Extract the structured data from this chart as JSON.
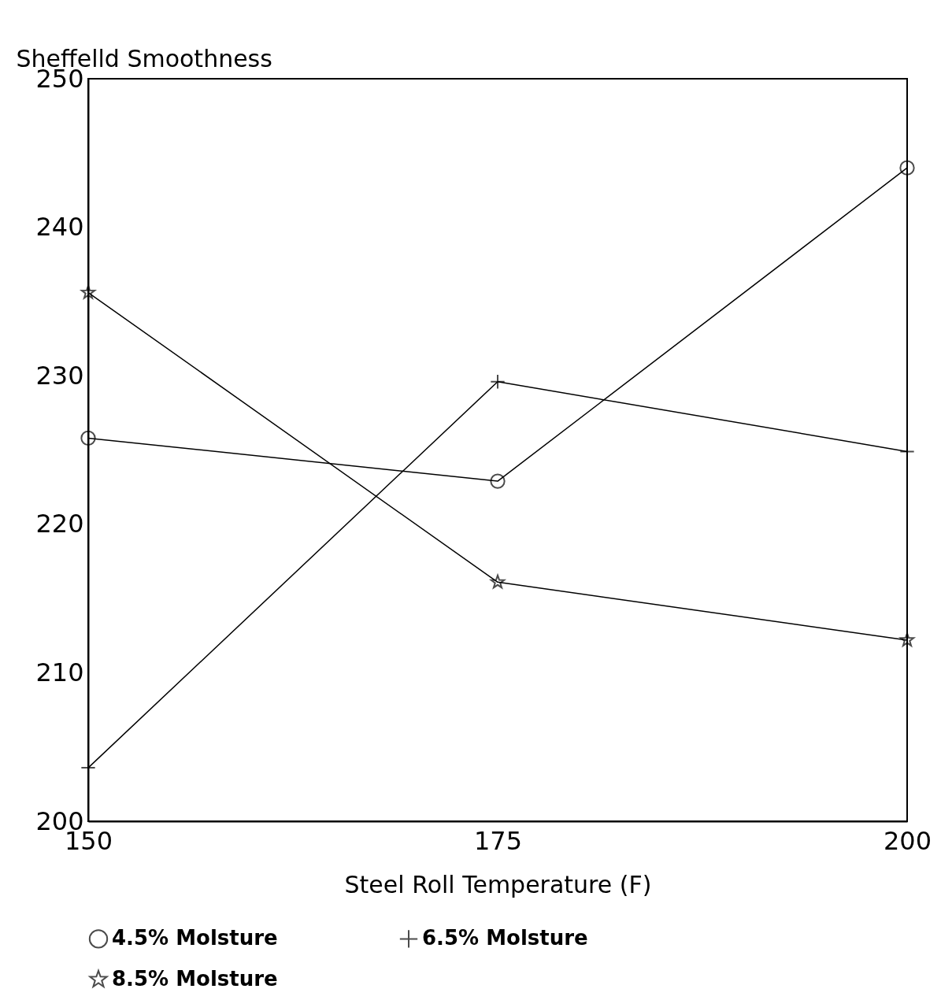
{
  "chart_data": {
    "type": "line",
    "ylabel": "Sheffelld Smoothness",
    "xlabel": "Steel Roll Temperature (F)",
    "x": [
      150,
      175,
      200
    ],
    "series": [
      {
        "name": "4.5% Molsture",
        "color": "#000000",
        "marker": "circle",
        "values": [
          225.8,
          222.9,
          244.0
        ]
      },
      {
        "name": "6.5% Molsture",
        "color": "#000000",
        "marker": "cross",
        "values": [
          203.6,
          229.6,
          224.9
        ]
      },
      {
        "name": "8.5% Molsture",
        "color": "#000000",
        "marker": "star",
        "values": [
          235.6,
          216.1,
          212.2
        ]
      }
    ],
    "xlim": [
      150,
      200
    ],
    "xticks": [
      150,
      175,
      200
    ],
    "ylim": [
      200,
      250
    ],
    "yticks": [
      200,
      210,
      220,
      230,
      240,
      250
    ],
    "grid": false,
    "legend": "bottom"
  }
}
